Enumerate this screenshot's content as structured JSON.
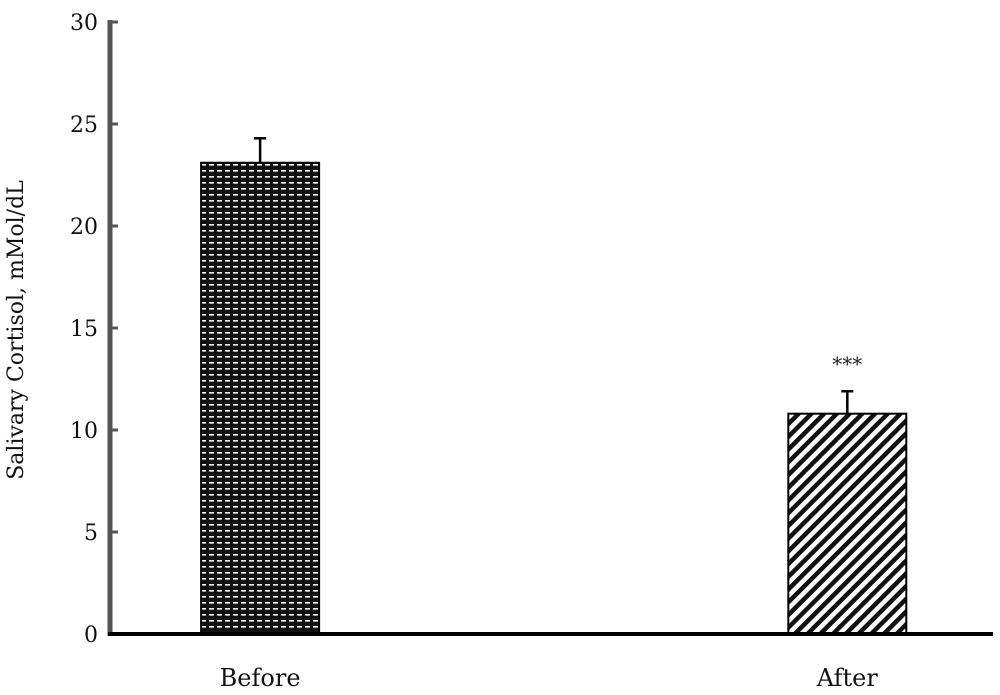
{
  "chart_data": {
    "type": "bar",
    "title": "",
    "xlabel": "",
    "ylabel": "Salivary Cortisol, mMol/dL",
    "ylim": [
      0,
      30
    ],
    "yticks": [
      0,
      5,
      10,
      15,
      20,
      25,
      30
    ],
    "grid": false,
    "categories": [
      "Before",
      "After"
    ],
    "series": [
      {
        "values": [
          23.1,
          10.8
        ],
        "errors": [
          1.2,
          1.1
        ]
      }
    ],
    "annotations": [
      {
        "category": "After",
        "text": "***"
      }
    ],
    "colors": {
      "axis": "#000000",
      "y_axis": "#555555",
      "bar_fill": "#111111",
      "bar_stroke": "#000000"
    }
  }
}
